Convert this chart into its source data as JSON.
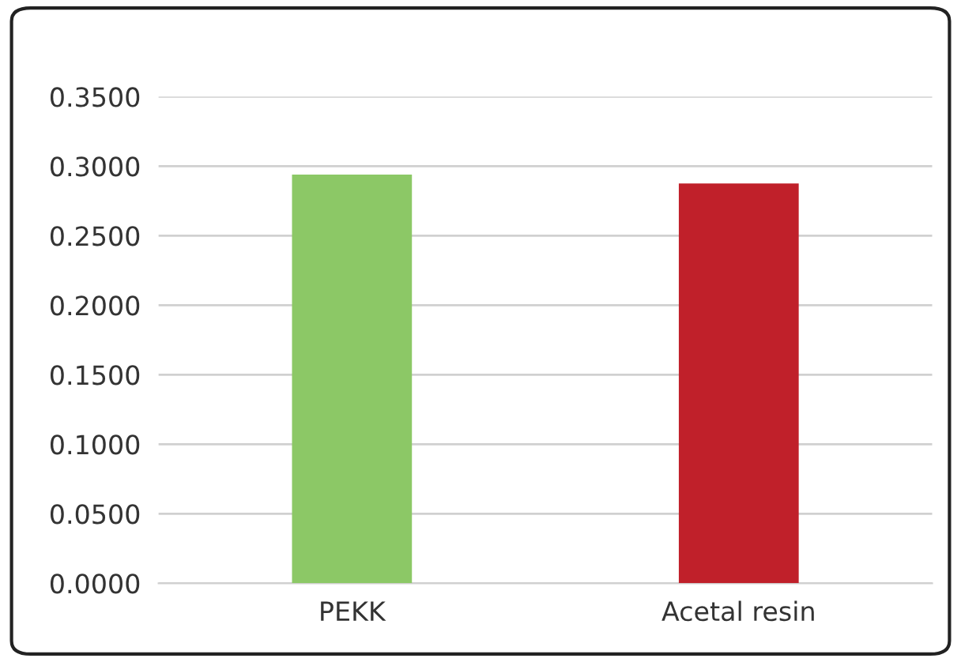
{
  "chart_data": {
    "type": "bar",
    "categories": [
      "PEKK",
      "Acetal resin"
    ],
    "values": [
      0.294,
      0.2875
    ],
    "colors": [
      "#8cc866",
      "#c0202a"
    ],
    "ylim": [
      0,
      0.35
    ],
    "yticks": [
      {
        "value": 0,
        "label": "0.0000"
      },
      {
        "value": 0.05,
        "label": "0.0500"
      },
      {
        "value": 0.1,
        "label": "0.1000"
      },
      {
        "value": 0.15,
        "label": "0.1500"
      },
      {
        "value": 0.2,
        "label": "0.2000"
      },
      {
        "value": 0.25,
        "label": "0.2500"
      },
      {
        "value": 0.3,
        "label": "0.3000"
      },
      {
        "value": 0.35,
        "label": "0.3500"
      }
    ],
    "grid": "y",
    "legend": false
  }
}
